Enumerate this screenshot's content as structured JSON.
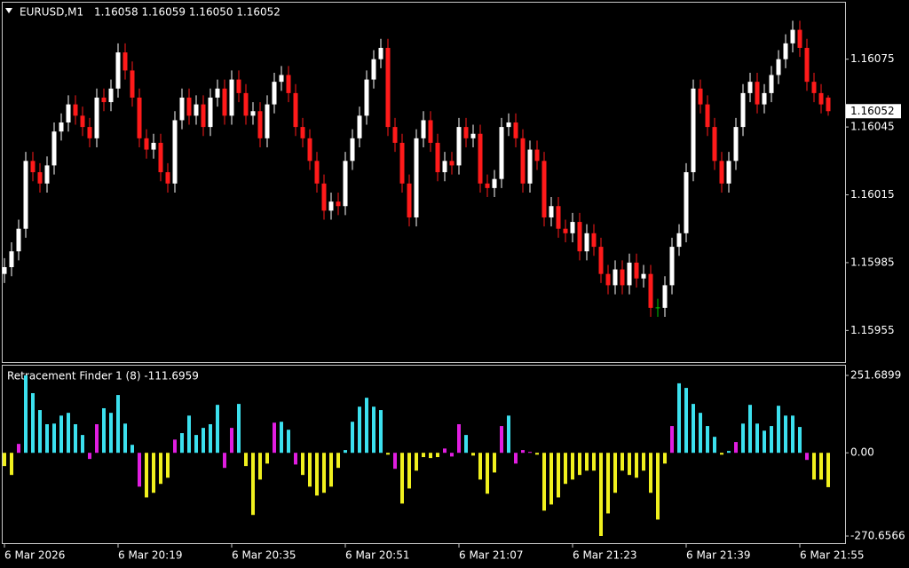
{
  "chart_data": [
    {
      "type": "candlestick",
      "symbol": "EURUSD,M1",
      "quote": "1.16058 1.16059 1.16050 1.16052",
      "categories": [
        "6 Mar 2026",
        null,
        null,
        null,
        null,
        null,
        null,
        null,
        null,
        null,
        null,
        null,
        null,
        null,
        null,
        null,
        "6 Mar 20:19",
        null,
        null,
        null,
        null,
        null,
        null,
        null,
        null,
        null,
        null,
        null,
        null,
        null,
        null,
        null,
        "6 Mar 20:35",
        null,
        null,
        null,
        null,
        null,
        null,
        null,
        null,
        null,
        null,
        null,
        null,
        null,
        null,
        null,
        "6 Mar 20:51",
        null,
        null,
        null,
        null,
        null,
        null,
        null,
        null,
        null,
        null,
        null,
        null,
        null,
        null,
        null,
        "6 Mar 21:07",
        null,
        null,
        null,
        null,
        null,
        null,
        null,
        null,
        null,
        null,
        null,
        null,
        null,
        null,
        null,
        "6 Mar 21:23",
        null,
        null,
        null,
        null,
        null,
        null,
        null,
        null,
        null,
        null,
        null,
        null,
        null,
        null,
        null,
        "6 Mar 21:39",
        null,
        null,
        null,
        null,
        null,
        null,
        null,
        null,
        null,
        null,
        null,
        null,
        null,
        null,
        null,
        "6 Mar 21:55",
        null,
        null,
        null,
        null
      ],
      "open": [
        1.1598,
        1.15983,
        1.1599,
        1.16,
        1.1603,
        1.16025,
        1.1602,
        1.16028,
        1.16043,
        1.16047,
        1.16055,
        1.1605,
        1.16045,
        1.1604,
        1.16058,
        1.16056,
        1.16062,
        1.16078,
        1.1607,
        1.16058,
        1.1604,
        1.16035,
        1.16038,
        1.16025,
        1.1602,
        1.16048,
        1.16058,
        1.1605,
        1.16055,
        1.16045,
        1.16058,
        1.16062,
        1.1605,
        1.16066,
        1.1606,
        1.1605,
        1.16052,
        1.1604,
        1.16055,
        1.16065,
        1.16068,
        1.1606,
        1.16045,
        1.1604,
        1.1603,
        1.1602,
        1.16008,
        1.16012,
        1.1601,
        1.1603,
        1.1604,
        1.1605,
        1.16066,
        1.16075,
        1.1608,
        1.16045,
        1.16038,
        1.1602,
        1.16005,
        1.1604,
        1.16048,
        1.16038,
        1.16025,
        1.1603,
        1.16028,
        1.16045,
        1.1604,
        1.16042,
        1.1602,
        1.16018,
        1.16022,
        1.16045,
        1.16047,
        1.1604,
        1.1602,
        1.16035,
        1.1603,
        1.16005,
        1.1601,
        1.16,
        1.15998,
        1.16003,
        1.1599,
        1.15998,
        1.15992,
        1.1598,
        1.15975,
        1.15982,
        1.15975,
        1.15985,
        1.15978,
        1.1598,
        1.15965,
        1.15965,
        1.15975,
        1.15992,
        1.15998,
        1.16025,
        1.16062,
        1.16055,
        1.16045,
        1.1603,
        1.1602,
        1.1603,
        1.16045,
        1.1606,
        1.16065,
        1.16055,
        1.1606,
        1.16068,
        1.16075,
        1.16082,
        1.16088,
        1.1608,
        1.16065,
        1.1606,
        1.16058
      ],
      "high": [
        1.15987,
        1.15994,
        1.16004,
        1.16034,
        1.16034,
        1.16029,
        1.16032,
        1.16047,
        1.16051,
        1.16059,
        1.16059,
        1.16054,
        1.16049,
        1.16062,
        1.16062,
        1.16066,
        1.16082,
        1.16082,
        1.16074,
        1.16062,
        1.16044,
        1.16042,
        1.16042,
        1.16029,
        1.16052,
        1.16062,
        1.16062,
        1.16059,
        1.16059,
        1.16062,
        1.16066,
        1.16066,
        1.1607,
        1.1607,
        1.16064,
        1.16056,
        1.16056,
        1.16059,
        1.16069,
        1.16072,
        1.16072,
        1.16064,
        1.16049,
        1.16044,
        1.16034,
        1.16024,
        1.16016,
        1.16016,
        1.16034,
        1.16044,
        1.16054,
        1.1607,
        1.16079,
        1.16084,
        1.16084,
        1.16049,
        1.16042,
        1.16024,
        1.16044,
        1.16052,
        1.16052,
        1.16042,
        1.16034,
        1.16034,
        1.16049,
        1.16049,
        1.16046,
        1.16046,
        1.16024,
        1.16026,
        1.16049,
        1.16051,
        1.16051,
        1.16044,
        1.16039,
        1.16039,
        1.16034,
        1.16014,
        1.16014,
        1.16004,
        1.16007,
        1.16007,
        1.16002,
        1.16002,
        1.15996,
        1.15984,
        1.15986,
        1.15986,
        1.15989,
        1.15989,
        1.15984,
        1.15984,
        1.15969,
        1.15979,
        1.15996,
        1.16002,
        1.16029,
        1.16066,
        1.16066,
        1.16059,
        1.16049,
        1.16034,
        1.16034,
        1.16049,
        1.16064,
        1.16069,
        1.16069,
        1.16064,
        1.16072,
        1.16079,
        1.16086,
        1.16092,
        1.16092,
        1.16084,
        1.16069,
        1.16064,
        1.16059
      ],
      "low": [
        1.15976,
        1.15979,
        1.15986,
        1.15996,
        1.16021,
        1.16016,
        1.16016,
        1.16024,
        1.16039,
        1.16043,
        1.16046,
        1.16041,
        1.16036,
        1.16036,
        1.16052,
        1.16052,
        1.16058,
        1.16066,
        1.16054,
        1.16036,
        1.16031,
        1.16031,
        1.16021,
        1.16016,
        1.16016,
        1.16044,
        1.16046,
        1.16046,
        1.16041,
        1.16041,
        1.16054,
        1.16046,
        1.16046,
        1.16056,
        1.16046,
        1.16046,
        1.16036,
        1.16036,
        1.16051,
        1.16061,
        1.16056,
        1.16041,
        1.16036,
        1.16026,
        1.16016,
        1.16004,
        1.16004,
        1.16006,
        1.16006,
        1.16026,
        1.16036,
        1.16046,
        1.16062,
        1.16071,
        1.16041,
        1.16034,
        1.16016,
        1.16001,
        1.16001,
        1.16036,
        1.16034,
        1.16021,
        1.16021,
        1.16024,
        1.16024,
        1.16036,
        1.16036,
        1.16016,
        1.16014,
        1.16014,
        1.16018,
        1.16041,
        1.16036,
        1.16016,
        1.16016,
        1.16026,
        1.16001,
        1.16001,
        1.15996,
        1.15994,
        1.15994,
        1.15986,
        1.15986,
        1.15988,
        1.15976,
        1.15971,
        1.15971,
        1.15971,
        1.15971,
        1.15974,
        1.15974,
        1.15961,
        1.15961,
        1.15961,
        1.15971,
        1.15988,
        1.15994,
        1.16021,
        1.16051,
        1.16041,
        1.16026,
        1.16016,
        1.16016,
        1.16026,
        1.16041,
        1.16056,
        1.16051,
        1.16051,
        1.16056,
        1.16064,
        1.16071,
        1.16078,
        1.16076,
        1.16061,
        1.16056,
        1.16051,
        1.1605
      ],
      "close": [
        1.15983,
        1.1599,
        1.16,
        1.1603,
        1.16025,
        1.1602,
        1.16028,
        1.16043,
        1.16047,
        1.16055,
        1.1605,
        1.16045,
        1.1604,
        1.16058,
        1.16056,
        1.16062,
        1.16078,
        1.1607,
        1.16058,
        1.1604,
        1.16035,
        1.16038,
        1.16025,
        1.1602,
        1.16048,
        1.16058,
        1.1605,
        1.16055,
        1.16045,
        1.16058,
        1.16062,
        1.1605,
        1.16066,
        1.1606,
        1.1605,
        1.16052,
        1.1604,
        1.16055,
        1.16065,
        1.16068,
        1.1606,
        1.16045,
        1.1604,
        1.1603,
        1.1602,
        1.16008,
        1.16012,
        1.1601,
        1.1603,
        1.1604,
        1.1605,
        1.16066,
        1.16075,
        1.1608,
        1.16045,
        1.16038,
        1.1602,
        1.16005,
        1.1604,
        1.16048,
        1.16038,
        1.16025,
        1.1603,
        1.16028,
        1.16045,
        1.1604,
        1.16042,
        1.1602,
        1.16018,
        1.16022,
        1.16045,
        1.16047,
        1.1604,
        1.1602,
        1.16035,
        1.1603,
        1.16005,
        1.1601,
        1.16,
        1.15998,
        1.16003,
        1.1599,
        1.15998,
        1.15992,
        1.1598,
        1.15975,
        1.15982,
        1.15975,
        1.15985,
        1.15978,
        1.1598,
        1.15965,
        1.15965,
        1.15975,
        1.15992,
        1.15998,
        1.16025,
        1.16062,
        1.16055,
        1.16045,
        1.1603,
        1.1602,
        1.1603,
        1.16045,
        1.1606,
        1.16065,
        1.16055,
        1.1606,
        1.16068,
        1.16075,
        1.16082,
        1.16088,
        1.1608,
        1.16065,
        1.1606,
        1.16055,
        1.16052
      ],
      "up_color": "#ffffff",
      "down_color": "#ff1a1a",
      "doji_color": "#00c800",
      "last_price": 1.16052,
      "ylim": [
        1.15941,
        1.161
      ],
      "yticks": [
        1.16075,
        1.16045,
        1.16015,
        1.15985,
        1.15955
      ]
    },
    {
      "type": "histogram",
      "title": "Retracement Finder 1 (8) -111.6959",
      "values": [
        -43,
        -72,
        29,
        251.6899,
        194,
        139,
        93,
        95,
        121,
        130,
        93,
        58,
        -20,
        93,
        145,
        130,
        188,
        95,
        26,
        -110,
        -145,
        -130,
        -101,
        -81,
        43,
        64,
        121,
        58,
        81,
        93,
        156,
        -49,
        81,
        159,
        -43,
        -202,
        -87,
        -35,
        98,
        101,
        75,
        -38,
        -72,
        -110,
        -139,
        -130,
        -110,
        -49,
        9,
        101,
        150,
        179,
        150,
        139,
        -6,
        -52,
        -165,
        -116,
        -58,
        -14,
        -17,
        -14,
        14,
        -12,
        93,
        58,
        -9,
        -87,
        -133,
        -64,
        87,
        121,
        -35,
        9,
        3,
        -6,
        -188,
        -168,
        -145,
        -101,
        -87,
        -72,
        -58,
        -58,
        -270.6566,
        -197,
        -130,
        -58,
        -72,
        -81,
        -58,
        -130,
        -217,
        -35,
        87,
        226,
        211,
        159,
        130,
        87,
        52,
        -6,
        6,
        35,
        95,
        156,
        95,
        72,
        87,
        153,
        121,
        121,
        84,
        -23,
        -87,
        -87,
        -111.6959
      ],
      "bar_colors": [
        "#f0f01e",
        "#f0f01e",
        "#e01ee0",
        "#3ce0ee",
        "#3ce0ee",
        "#3ce0ee",
        "#3ce0ee",
        "#3ce0ee",
        "#3ce0ee",
        "#3ce0ee",
        "#3ce0ee",
        "#3ce0ee",
        "#e01ee0",
        "#e01ee0",
        "#3ce0ee",
        "#3ce0ee",
        "#3ce0ee",
        "#3ce0ee",
        "#3ce0ee",
        "#e01ee0",
        "#f0f01e",
        "#f0f01e",
        "#f0f01e",
        "#f0f01e",
        "#e01ee0",
        "#3ce0ee",
        "#3ce0ee",
        "#3ce0ee",
        "#3ce0ee",
        "#3ce0ee",
        "#3ce0ee",
        "#e01ee0",
        "#e01ee0",
        "#3ce0ee",
        "#f0f01e",
        "#f0f01e",
        "#f0f01e",
        "#f0f01e",
        "#e01ee0",
        "#3ce0ee",
        "#3ce0ee",
        "#e01ee0",
        "#f0f01e",
        "#f0f01e",
        "#f0f01e",
        "#f0f01e",
        "#f0f01e",
        "#f0f01e",
        "#3ce0ee",
        "#3ce0ee",
        "#3ce0ee",
        "#3ce0ee",
        "#3ce0ee",
        "#3ce0ee",
        "#f0f01e",
        "#e01ee0",
        "#f0f01e",
        "#f0f01e",
        "#f0f01e",
        "#f0f01e",
        "#f0f01e",
        "#f0f01e",
        "#e01ee0",
        "#e01ee0",
        "#e01ee0",
        "#3ce0ee",
        "#f0f01e",
        "#f0f01e",
        "#f0f01e",
        "#f0f01e",
        "#e01ee0",
        "#3ce0ee",
        "#e01ee0",
        "#e01ee0",
        "#e01ee0",
        "#f0f01e",
        "#f0f01e",
        "#f0f01e",
        "#f0f01e",
        "#f0f01e",
        "#f0f01e",
        "#f0f01e",
        "#f0f01e",
        "#f0f01e",
        "#f0f01e",
        "#f0f01e",
        "#f0f01e",
        "#f0f01e",
        "#f0f01e",
        "#f0f01e",
        "#f0f01e",
        "#f0f01e",
        "#f0f01e",
        "#f0f01e",
        "#e01ee0",
        "#3ce0ee",
        "#3ce0ee",
        "#3ce0ee",
        "#3ce0ee",
        "#3ce0ee",
        "#3ce0ee",
        "#f0f01e",
        "#3ce0ee",
        "#e01ee0",
        "#3ce0ee",
        "#3ce0ee",
        "#3ce0ee",
        "#3ce0ee",
        "#3ce0ee",
        "#3ce0ee",
        "#3ce0ee",
        "#3ce0ee",
        "#3ce0ee",
        "#e01ee0",
        "#f0f01e",
        "#f0f01e",
        "#f0f01e"
      ],
      "ylim": [
        -270.6566,
        251.6899
      ],
      "yticks": [
        251.6899,
        {
          "value": 0,
          "label": "0.00"
        },
        -270.6566
      ]
    }
  ]
}
